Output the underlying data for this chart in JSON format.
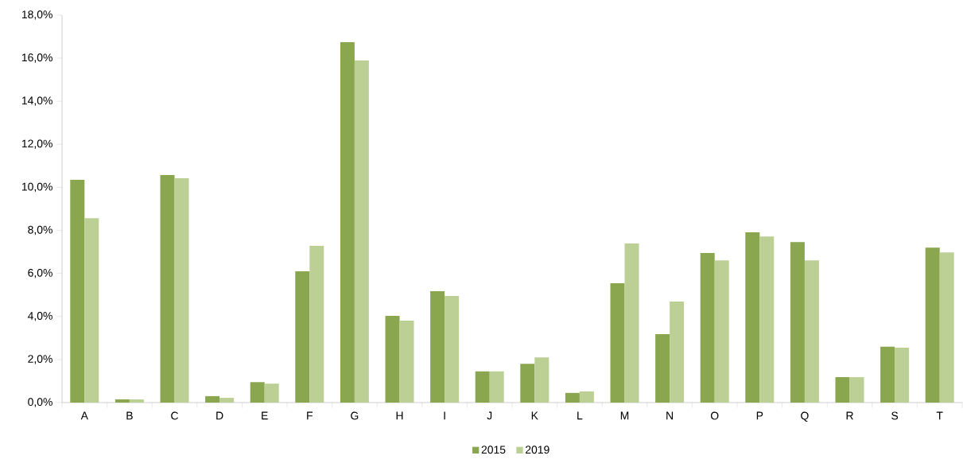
{
  "chart_data": {
    "type": "bar",
    "categories": [
      "A",
      "B",
      "C",
      "D",
      "E",
      "F",
      "G",
      "H",
      "I",
      "J",
      "K",
      "L",
      "M",
      "N",
      "O",
      "P",
      "Q",
      "R",
      "S",
      "T"
    ],
    "series": [
      {
        "name": "2015",
        "color": "#8aa64e",
        "values": [
          10.35,
          0.15,
          10.57,
          0.3,
          0.95,
          6.1,
          16.74,
          4.03,
          5.17,
          1.45,
          1.8,
          0.45,
          5.54,
          3.18,
          6.95,
          7.91,
          7.46,
          1.18,
          2.6,
          7.2
        ]
      },
      {
        "name": "2019",
        "color": "#bcd095",
        "values": [
          8.57,
          0.15,
          10.42,
          0.22,
          0.88,
          7.28,
          15.89,
          3.81,
          4.95,
          1.45,
          2.1,
          0.52,
          7.39,
          4.69,
          6.61,
          7.72,
          6.61,
          1.18,
          2.55,
          6.98
        ]
      }
    ],
    "ylim": [
      0,
      18
    ],
    "yticks": [
      {
        "value": 0,
        "label": "0,0%"
      },
      {
        "value": 2,
        "label": "2,0%"
      },
      {
        "value": 4,
        "label": "4,0%"
      },
      {
        "value": 6,
        "label": "6,0%"
      },
      {
        "value": 8,
        "label": "8,0%"
      },
      {
        "value": 10,
        "label": "10,0%"
      },
      {
        "value": 12,
        "label": "12,0%"
      },
      {
        "value": 14,
        "label": "14,0%"
      },
      {
        "value": 16,
        "label": "16,0%"
      },
      {
        "value": 18,
        "label": "18,0%"
      }
    ],
    "grid": false,
    "legend": "bottom"
  }
}
